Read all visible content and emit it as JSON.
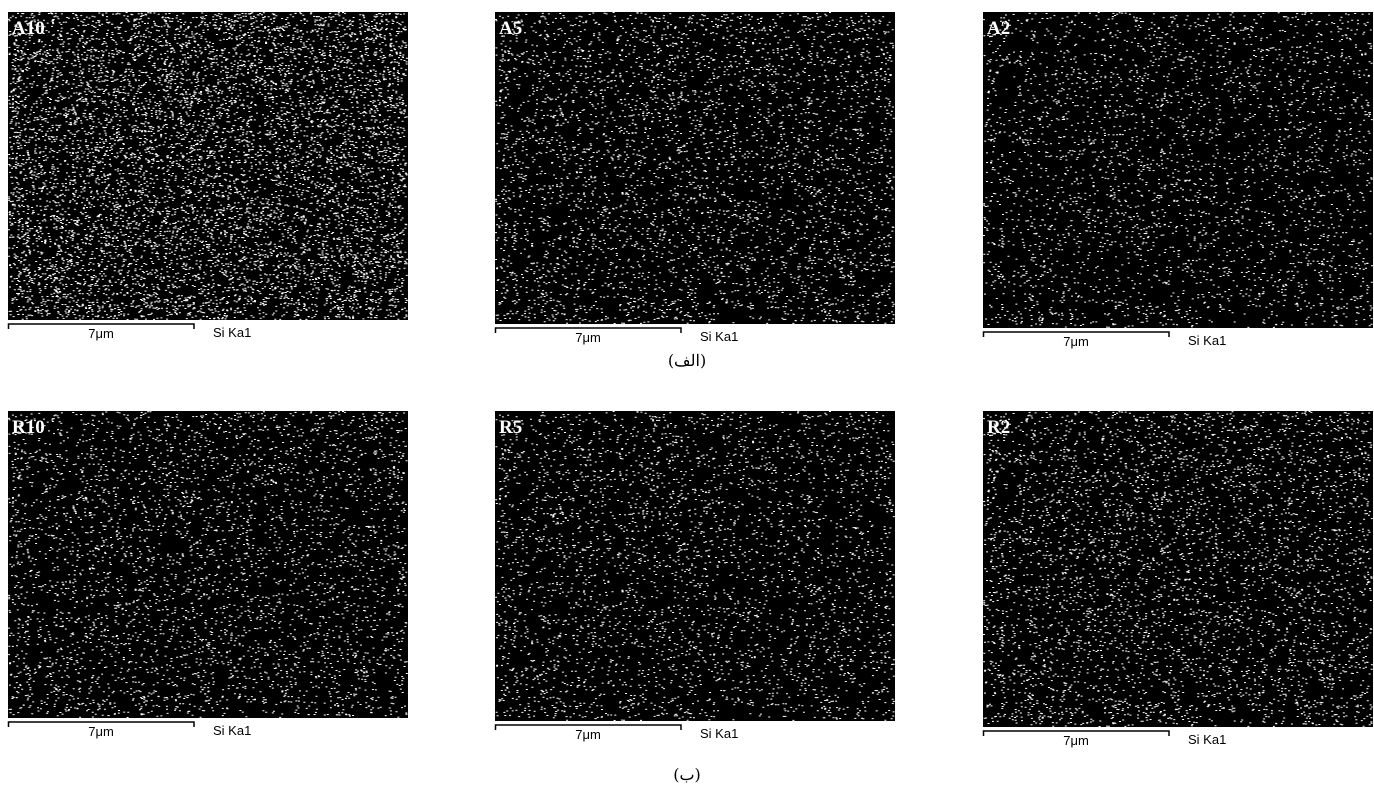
{
  "figure": {
    "rows": [
      {
        "caption": "(الف)",
        "panels": [
          {
            "label": "A10",
            "scale": "7μm",
            "signal": "Si Ka1"
          },
          {
            "label": "A5",
            "scale": "7μm",
            "signal": "Si Ka1"
          },
          {
            "label": "A2",
            "scale": "7μm",
            "signal": "Si Ka1"
          }
        ]
      },
      {
        "caption": "(ب)",
        "panels": [
          {
            "label": "R10",
            "scale": "7μm",
            "signal": "Si Ka1"
          },
          {
            "label": "R5",
            "scale": "7μm",
            "signal": "Si Ka1"
          },
          {
            "label": "R2",
            "scale": "7μm",
            "signal": "Si Ka1"
          }
        ]
      }
    ]
  }
}
